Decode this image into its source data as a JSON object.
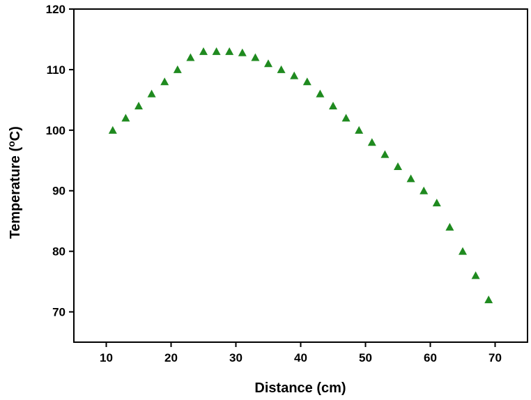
{
  "chart_data": {
    "type": "scatter",
    "title": "",
    "xlabel": "Distance (cm)",
    "ylabel": "Temperature (",
    "ylabel_sup": "o",
    "ylabel_suffix": "C)",
    "xlim": [
      5,
      75
    ],
    "ylim": [
      65,
      120
    ],
    "x_ticks": [
      10,
      20,
      30,
      40,
      50,
      60,
      70
    ],
    "y_ticks": [
      70,
      80,
      90,
      100,
      110,
      120
    ],
    "marker": "triangle",
    "marker_color": "#1f8a1f",
    "grid": false,
    "series": [
      {
        "x": [
          11,
          13,
          15,
          17,
          19,
          21,
          23,
          25,
          27,
          29,
          31,
          33,
          35,
          37,
          39,
          41,
          43,
          45,
          47,
          49,
          51,
          53,
          55,
          57,
          59,
          61,
          63,
          65,
          67,
          69
        ],
        "y": [
          100,
          102,
          104,
          106,
          108,
          110,
          112,
          113,
          113,
          113,
          112.8,
          112,
          111,
          110,
          109,
          108,
          106,
          104,
          102,
          100,
          98,
          96,
          94,
          92,
          90,
          88,
          84,
          80,
          76,
          72
        ]
      }
    ]
  }
}
